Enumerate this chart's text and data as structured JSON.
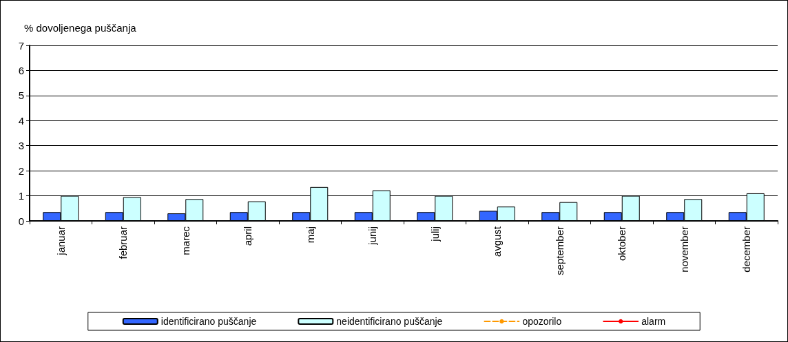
{
  "chart_data": {
    "type": "bar",
    "ylabel": "% dovoljenega puščanja",
    "categories": [
      "januar",
      "februar",
      "marec",
      "april",
      "maj",
      "junij",
      "julij",
      "avgust",
      "september",
      "oktober",
      "november",
      "december"
    ],
    "series": [
      {
        "name": "identificirano puščanje",
        "color": "#3366ff",
        "values": [
          0.35,
          0.35,
          0.3,
          0.35,
          0.35,
          0.35,
          0.35,
          0.4,
          0.35,
          0.35,
          0.35,
          0.35
        ]
      },
      {
        "name": "neidentificirano puščanje",
        "color": "#ccffff",
        "values": [
          1.0,
          0.95,
          0.87,
          0.78,
          1.35,
          1.22,
          1.0,
          0.57,
          0.75,
          1.0,
          0.87,
          1.1
        ]
      },
      {
        "name": "opozorilo",
        "type": "line",
        "color": "#ff9900",
        "line_style": "dashed",
        "values": [
          null,
          null,
          null,
          null,
          null,
          null,
          null,
          null,
          null,
          null,
          null,
          null
        ]
      },
      {
        "name": "alarm",
        "type": "line",
        "color": "#ff0000",
        "line_style": "solid",
        "values": [
          null,
          null,
          null,
          null,
          null,
          null,
          null,
          null,
          null,
          null,
          null,
          null
        ]
      }
    ],
    "ylim": [
      0,
      7
    ],
    "yticks": [
      0,
      1,
      2,
      3,
      4,
      5,
      6,
      7
    ],
    "grid": "y",
    "legend": "bottom"
  }
}
